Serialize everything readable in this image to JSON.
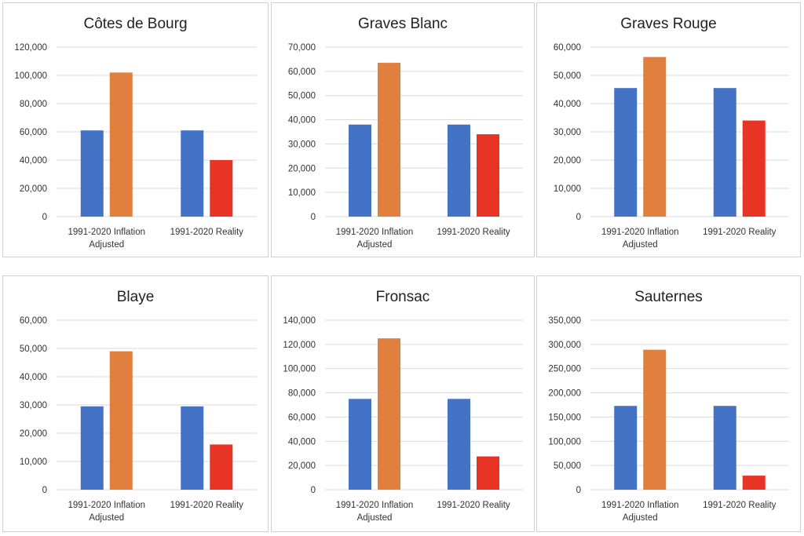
{
  "colors": {
    "blue": "#4472c4",
    "orange": "#e07f3e",
    "red": "#e83424"
  },
  "chart_data": [
    {
      "type": "bar",
      "title": "Côtes de Bourg",
      "categories": [
        [
          "1991-2020 Inflation",
          "Adjusted"
        ],
        [
          "1991-2020 Reality"
        ]
      ],
      "ylim": [
        0,
        120000
      ],
      "ticks": [
        "0",
        "20,000",
        "40,000",
        "60,000",
        "80,000",
        "100,000",
        "120,000"
      ],
      "bars": [
        [
          61000,
          102000
        ],
        [
          61000,
          40000
        ]
      ],
      "grid": true
    },
    {
      "type": "bar",
      "title": "Graves Blanc",
      "categories": [
        [
          "1991-2020 Inflation",
          "Adjusted"
        ],
        [
          "1991-2020 Reality"
        ]
      ],
      "ylim": [
        0,
        70000
      ],
      "ticks": [
        "0",
        "10,000",
        "20,000",
        "30,000",
        "40,000",
        "50,000",
        "60,000",
        "70,000"
      ],
      "bars": [
        [
          38000,
          63500
        ],
        [
          38000,
          34000
        ]
      ],
      "grid": true
    },
    {
      "type": "bar",
      "title": "Graves Rouge",
      "categories": [
        [
          "1991-2020 Inflation",
          "Adjusted"
        ],
        [
          "1991-2020 Reality"
        ]
      ],
      "ylim": [
        0,
        60000
      ],
      "ticks": [
        "0",
        "10,000",
        "20,000",
        "30,000",
        "40,000",
        "50,000",
        "60,000"
      ],
      "bars": [
        [
          45500,
          56500
        ],
        [
          45500,
          34000
        ]
      ],
      "grid": true
    },
    {
      "type": "bar",
      "title": "Blaye",
      "categories": [
        [
          "1991-2020 Inflation",
          "Adjusted"
        ],
        [
          "1991-2020 Reality"
        ]
      ],
      "ylim": [
        0,
        60000
      ],
      "ticks": [
        "0",
        "10,000",
        "20,000",
        "30,000",
        "40,000",
        "50,000",
        "60,000"
      ],
      "bars": [
        [
          29500,
          49000
        ],
        [
          29500,
          16000
        ]
      ],
      "grid": true
    },
    {
      "type": "bar",
      "title": "Fronsac",
      "categories": [
        [
          "1991-2020 Inflation",
          "Adjusted"
        ],
        [
          "1991-2020 Reality"
        ]
      ],
      "ylim": [
        0,
        140000
      ],
      "ticks": [
        "0",
        "20,000",
        "40,000",
        "60,000",
        "80,000",
        "100,000",
        "120,000",
        "140,000"
      ],
      "bars": [
        [
          75000,
          125000
        ],
        [
          75000,
          27500
        ]
      ],
      "grid": true
    },
    {
      "type": "bar",
      "title": "Sauternes",
      "categories": [
        [
          "1991-2020 Inflation",
          "Adjusted"
        ],
        [
          "1991-2020 Reality"
        ]
      ],
      "ylim": [
        0,
        350000
      ],
      "ticks": [
        "0",
        "50,000",
        "100,000",
        "150,000",
        "200,000",
        "250,000",
        "300,000",
        "350,000"
      ],
      "bars": [
        [
          173000,
          289000
        ],
        [
          173000,
          29000
        ]
      ],
      "grid": true
    }
  ]
}
